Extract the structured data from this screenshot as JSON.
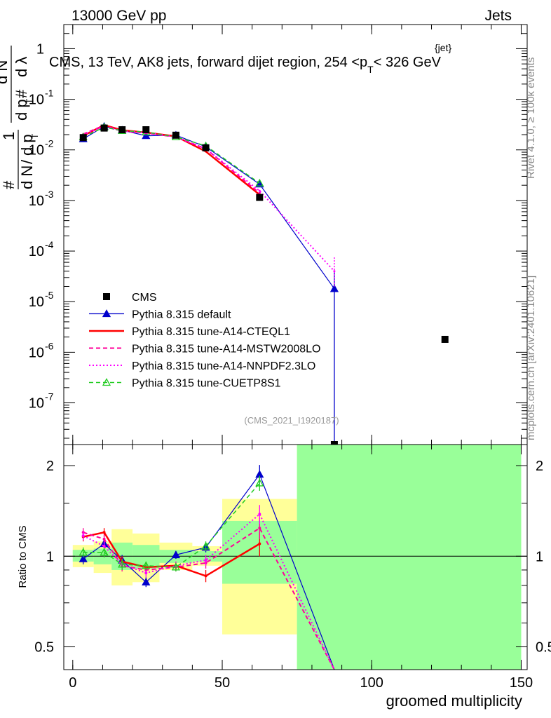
{
  "header": {
    "left": "13000 GeV pp",
    "right": "Jets"
  },
  "side_labels": {
    "rivet": "Rivet 4.1.0, ≥ 100k events",
    "mcplots": "mcplots.cern.ch [arXiv:2401.10621]"
  },
  "analysis_id": "(CMS_2021_I1920187)",
  "colors": {
    "cms": "#000000",
    "default": "#0000cc",
    "cteql1": "#ff0000",
    "mstw": "#ff0099",
    "nnpdf": "#ff00ff",
    "cuetp8s1": "#22cc22",
    "band_yellow": "#ffff99",
    "band_green": "#99ff99"
  },
  "chart_data": [
    {
      "type": "line",
      "title": "CMS, 13 TeV, AK8 jets, forward dijet region, 254 <p_T^{jet}< 326 GeV",
      "title_parts": {
        "prefix": "CMS, 13 TeV, AK8 jets, forward dijet region, 254 <",
        "p": "p",
        "sub": "T",
        "sup": "{jet}",
        "suffix": "< 326 GeV"
      },
      "ylabel": "1/N dN/dp_T d^2N/(dp_T dλ)",
      "ylabel_parts": {
        "one": "1",
        "num_hash": "#",
        "den": "d N",
        "slash": "/",
        "dpt": "d p",
        "T": "T",
        "d2": "2",
        "dN": "d N",
        "hash2": "#",
        "dpt2": "d p",
        "T2": "T",
        "dlam": "d λ"
      },
      "yscale": "log",
      "ylim": [
        1.5e-08,
        3.0
      ],
      "xlim": [
        -3,
        152
      ],
      "ytick_exponents": [
        -7,
        -6,
        -5,
        -4,
        -3,
        -2,
        -1,
        0
      ],
      "ytick_labels": [
        "10",
        "10",
        "10",
        "10",
        "10",
        "10",
        "10",
        "1"
      ],
      "ytick_sups": [
        "-7",
        "-6",
        "-5",
        "-4",
        "-3",
        "-2",
        "-1",
        ""
      ],
      "series": [
        {
          "name": "CMS",
          "key": "cms",
          "style": "marker-square",
          "x": [
            3.5,
            10.5,
            16.5,
            24.5,
            34.5,
            44.5,
            62.5,
            87.5,
            124.5
          ],
          "y": [
            0.0175,
            0.027,
            0.025,
            0.025,
            0.0195,
            0.011,
            0.00115,
            1.5e-08,
            1.8e-06
          ]
        },
        {
          "name": "Pythia 8.315 default",
          "key": "default",
          "style": "solid-triangle",
          "x": [
            3.5,
            10.5,
            16.5,
            24.5,
            34.5,
            44.5,
            62.5,
            87.5
          ],
          "y": [
            0.0165,
            0.029,
            0.0245,
            0.019,
            0.0195,
            0.0115,
            0.0021,
            1.8e-05
          ],
          "yerr_hi": [
            null,
            null,
            null,
            null,
            null,
            null,
            null,
            4e-05
          ],
          "yerr_lo": [
            null,
            null,
            null,
            null,
            null,
            null,
            null,
            1.5e-08
          ]
        },
        {
          "name": "Pythia 8.315 tune-A14-CTEQL1",
          "key": "cteql1",
          "style": "solid",
          "x": [
            3.5,
            10.5,
            16.5,
            24.5,
            34.5,
            44.5,
            62.5
          ],
          "y": [
            0.019,
            0.031,
            0.0245,
            0.022,
            0.0185,
            0.0093,
            0.0013
          ]
        },
        {
          "name": "Pythia 8.315 tune-A14-MSTW2008LO",
          "key": "mstw",
          "style": "dashed",
          "x": [
            3.5,
            10.5,
            16.5,
            24.5,
            34.5,
            44.5,
            62.5
          ],
          "y": [
            0.0205,
            0.0305,
            0.0235,
            0.0215,
            0.018,
            0.0105,
            0.0014
          ]
        },
        {
          "name": "Pythia 8.315 tune-A14-NNPDF2.3LO",
          "key": "nnpdf",
          "style": "dotted",
          "x": [
            3.5,
            10.5,
            16.5,
            24.5,
            34.5,
            44.5,
            62.5,
            87.5
          ],
          "y": [
            0.02,
            0.029,
            0.0235,
            0.022,
            0.018,
            0.0105,
            0.00155,
            4e-05
          ]
        },
        {
          "name": "Pythia 8.315 tune-CUETP8S1",
          "key": "cuetp8s1",
          "style": "dashed-open-triangle",
          "x": [
            3.5,
            10.5,
            16.5,
            24.5,
            34.5,
            44.5,
            62.5
          ],
          "y": [
            0.018,
            0.028,
            0.024,
            0.0225,
            0.018,
            0.012,
            0.0022
          ]
        }
      ],
      "legend": {
        "placement": "lower-left",
        "entries": [
          "CMS",
          "Pythia 8.315 default",
          "Pythia 8.315 tune-A14-CTEQL1",
          "Pythia 8.315 tune-A14-MSTW2008LO",
          "Pythia 8.315 tune-A14-NNPDF2.3LO",
          "Pythia 8.315 tune-CUETP8S1"
        ]
      }
    },
    {
      "type": "line",
      "title": "",
      "ylabel": "Ratio to CMS",
      "xlabel": "groomed multiplicity",
      "yscale": "log",
      "ylim": [
        0.42,
        2.35
      ],
      "xlim": [
        -3,
        152
      ],
      "yticks": [
        0.5,
        1,
        2
      ],
      "ytick_labels": [
        "0.5",
        "1",
        "2"
      ],
      "xticks": [
        0,
        50,
        100,
        150
      ],
      "xtick_labels": [
        "0",
        "50",
        "100",
        "150"
      ],
      "bands": {
        "yellow": [
          {
            "x": [
              0,
              7
            ],
            "y": [
              0.92,
              1.09
            ]
          },
          {
            "x": [
              7,
              13
            ],
            "y": [
              0.88,
              1.12
            ]
          },
          {
            "x": [
              13,
              20
            ],
            "y": [
              0.8,
              1.23
            ]
          },
          {
            "x": [
              20,
              29
            ],
            "y": [
              0.82,
              1.19
            ]
          },
          {
            "x": [
              29,
              40
            ],
            "y": [
              0.9,
              1.11
            ]
          },
          {
            "x": [
              40,
              50
            ],
            "y": [
              0.93,
              1.08
            ]
          },
          {
            "x": [
              50,
              75
            ],
            "y": [
              0.55,
              1.55
            ]
          },
          {
            "x": [
              75,
              150
            ],
            "y": [
              0.42,
              2.35
            ]
          }
        ],
        "green": [
          {
            "x": [
              0,
              7
            ],
            "y": [
              0.96,
              1.05
            ]
          },
          {
            "x": [
              7,
              13
            ],
            "y": [
              0.94,
              1.06
            ]
          },
          {
            "x": [
              13,
              20
            ],
            "y": [
              0.9,
              1.11
            ]
          },
          {
            "x": [
              20,
              29
            ],
            "y": [
              0.91,
              1.09
            ]
          },
          {
            "x": [
              29,
              40
            ],
            "y": [
              0.95,
              1.05
            ]
          },
          {
            "x": [
              40,
              50
            ],
            "y": [
              0.96,
              1.04
            ]
          },
          {
            "x": [
              50,
              75
            ],
            "y": [
              0.81,
              1.31
            ]
          },
          {
            "x": [
              75,
              150
            ],
            "y": [
              0.42,
              2.35
            ]
          }
        ]
      },
      "series": [
        {
          "name": "Pythia 8.315 default",
          "key": "default",
          "x": [
            3.5,
            10.5,
            16.5,
            24.5,
            34.5,
            44.5,
            62.5,
            87.5
          ],
          "y": [
            0.98,
            1.1,
            0.97,
            0.82,
            1.01,
            1.07,
            1.87,
            0.38
          ],
          "err": [
            0.04,
            0.04,
            0.04,
            0.03,
            0.03,
            0.04,
            0.14,
            0
          ]
        },
        {
          "name": "Pythia 8.315 tune-A14-CTEQL1",
          "key": "cteql1",
          "x": [
            3.5,
            10.5,
            16.5,
            24.5,
            34.5,
            44.5,
            62.5
          ],
          "y": [
            1.16,
            1.2,
            0.96,
            0.92,
            0.93,
            0.86,
            1.1
          ],
          "err": [
            0.04,
            0.04,
            0.04,
            0.03,
            0.03,
            0.04,
            0.1
          ]
        },
        {
          "name": "Pythia 8.315 tune-A14-MSTW2008LO",
          "key": "mstw",
          "x": [
            3.5,
            10.5,
            16.5,
            24.5,
            34.5,
            44.5,
            62.5,
            87.5
          ],
          "y": [
            1.2,
            1.14,
            0.93,
            0.9,
            0.92,
            0.95,
            1.24,
            0.38
          ],
          "err": [
            0.04,
            0.04,
            0.04,
            0.03,
            0.03,
            0.04,
            0.1,
            0
          ]
        },
        {
          "name": "Pythia 8.315 tune-A14-NNPDF2.3LO",
          "key": "nnpdf",
          "x": [
            3.5,
            10.5,
            16.5,
            24.5,
            34.5,
            44.5,
            62.5,
            87.5
          ],
          "y": [
            1.17,
            1.08,
            0.94,
            0.88,
            0.93,
            0.97,
            1.38,
            0.38
          ],
          "err": [
            0.04,
            0.04,
            0.04,
            0.03,
            0.03,
            0.04,
            0.1,
            0
          ]
        },
        {
          "name": "Pythia 8.315 tune-CUETP8S1",
          "key": "cuetp8s1",
          "x": [
            3.5,
            10.5,
            16.5,
            24.5,
            34.5,
            44.5,
            62.5
          ],
          "y": [
            1.03,
            1.03,
            0.94,
            0.93,
            0.92,
            1.08,
            1.75
          ],
          "err": [
            0.04,
            0.04,
            0.04,
            0.03,
            0.03,
            0.04,
            0.1
          ]
        }
      ]
    }
  ]
}
